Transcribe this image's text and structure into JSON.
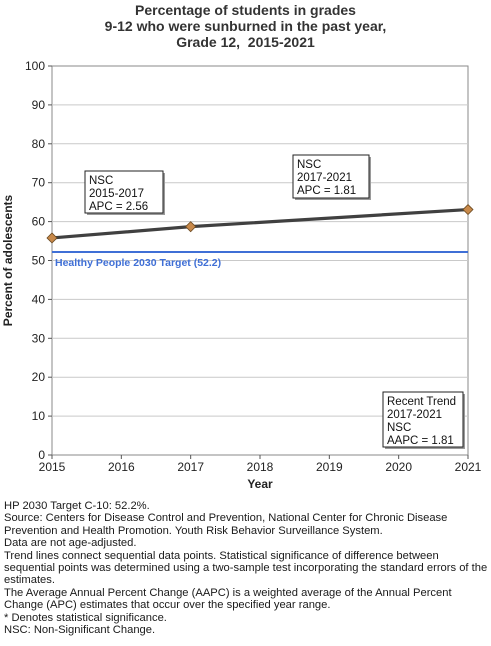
{
  "chart_data": {
    "type": "line",
    "title_lines": [
      "Percentage of students in grades",
      "9-12 who were sunburned in the past year,",
      "Grade 12,  2015-2021"
    ],
    "xlabel": "Year",
    "ylabel": "Percent of adolescents",
    "xlim": [
      2015,
      2021
    ],
    "ylim": [
      0,
      100
    ],
    "x_ticks": [
      "2015",
      "2016",
      "2017",
      "2018",
      "2019",
      "2020",
      "2021"
    ],
    "y_ticks": [
      "0",
      "10",
      "20",
      "30",
      "40",
      "50",
      "60",
      "70",
      "80",
      "90",
      "100"
    ],
    "grid": true,
    "series": [
      {
        "x": [
          2015,
          2017,
          2021
        ],
        "y": [
          55.8,
          58.7,
          63.1
        ],
        "color": "#404040",
        "marker_color": "#c8894a"
      }
    ],
    "target": {
      "value": 52.2,
      "label": "Healthy People 2030 Target (52.2)",
      "color": "#3f6fd6"
    },
    "annotations": [
      {
        "lines": [
          "NSC",
          "2015-2017",
          "APC =  2.56"
        ]
      },
      {
        "lines": [
          "NSC",
          "2017-2021",
          "APC =  1.81"
        ]
      },
      {
        "lines": [
          "Recent Trend",
          "2017-2021",
          "NSC",
          "AAPC =  1.81"
        ]
      }
    ]
  },
  "notes": [
    "HP 2030 Target C-10: 52.2%.",
    "Source: Centers for Disease Control and Prevention, National Center for Chronic Disease Prevention and Health Promotion. Youth Risk Behavior Surveillance System.",
    "Data are not age-adjusted.",
    "Trend lines connect sequential data points. Statistical significance of difference between sequential points was determined using a two-sample test incorporating the standard errors of the estimates.",
    "The Average Annual Percent Change (AAPC) is a weighted average of the Annual Percent Change (APC) estimates that occur over the specified year range.",
    "* Denotes statistical significance.",
    "NSC: Non-Significant Change."
  ]
}
